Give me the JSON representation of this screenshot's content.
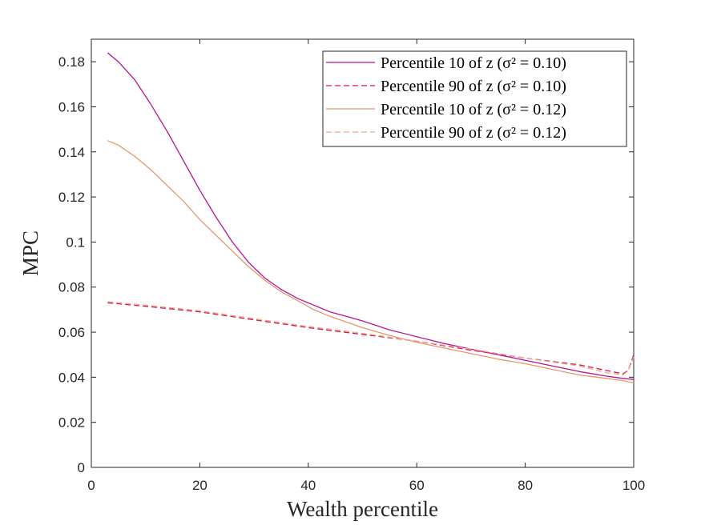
{
  "chart_data": {
    "type": "line",
    "title": "",
    "xlabel": "Wealth percentile",
    "ylabel": "MPC",
    "xlim": [
      0,
      100
    ],
    "ylim": [
      0,
      0.19
    ],
    "xticks": [
      0,
      20,
      40,
      60,
      80,
      100
    ],
    "xtick_labels": [
      "0",
      "20",
      "40",
      "60",
      "80",
      "100"
    ],
    "yticks": [
      0,
      0.02,
      0.04,
      0.06,
      0.08,
      0.1,
      0.12,
      0.14,
      0.16,
      0.18
    ],
    "ytick_labels": [
      "0",
      "0.02",
      "0.04",
      "0.06",
      "0.08",
      "0.1",
      "0.12",
      "0.14",
      "0.16",
      "0.18"
    ],
    "grid": false,
    "legend_position": "top-right",
    "series": [
      {
        "name": "Percentile 10 of z (σ² = 0.10)",
        "color": "#b5158f",
        "dash": "solid",
        "x": [
          3,
          5,
          8,
          11,
          14,
          17,
          20,
          23,
          26,
          29,
          32,
          35,
          38,
          41,
          44,
          47,
          50,
          55,
          60,
          65,
          70,
          75,
          80,
          85,
          90,
          95,
          98,
          100
        ],
        "y": [
          0.184,
          0.18,
          0.172,
          0.161,
          0.149,
          0.136,
          0.123,
          0.111,
          0.1,
          0.091,
          0.084,
          0.079,
          0.075,
          0.072,
          0.069,
          0.067,
          0.065,
          0.061,
          0.058,
          0.055,
          0.0525,
          0.05,
          0.0475,
          0.045,
          0.0425,
          0.0405,
          0.0395,
          0.039
        ]
      },
      {
        "name": "Percentile 90 of z (σ² = 0.10)",
        "color": "#d6174f",
        "dash": "dashed",
        "x": [
          3,
          10,
          20,
          30,
          40,
          50,
          60,
          70,
          80,
          90,
          95,
          98,
          99,
          100
        ],
        "y": [
          0.073,
          0.0715,
          0.069,
          0.0655,
          0.062,
          0.059,
          0.056,
          0.052,
          0.0485,
          0.0455,
          0.043,
          0.0415,
          0.043,
          0.05
        ]
      },
      {
        "name": "Percentile 10 of z (σ² = 0.12)",
        "color": "#e8956b",
        "dash": "solid",
        "x": [
          3,
          5,
          8,
          11,
          14,
          17,
          20,
          23,
          26,
          29,
          32,
          35,
          38,
          41,
          44,
          47,
          50,
          55,
          60,
          65,
          70,
          75,
          80,
          85,
          90,
          95,
          98,
          100
        ],
        "y": [
          0.145,
          0.143,
          0.138,
          0.132,
          0.125,
          0.118,
          0.11,
          0.103,
          0.096,
          0.089,
          0.083,
          0.078,
          0.074,
          0.07,
          0.067,
          0.0645,
          0.062,
          0.0585,
          0.0555,
          0.053,
          0.0505,
          0.048,
          0.046,
          0.0435,
          0.041,
          0.0395,
          0.0385,
          0.0375
        ]
      },
      {
        "name": "Percentile 90 of z (σ² = 0.12)",
        "color": "#eba789",
        "dash": "dashed",
        "x": [
          3,
          10,
          20,
          30,
          40,
          50,
          60,
          70,
          80,
          90,
          95,
          98,
          99,
          100
        ],
        "y": [
          0.0735,
          0.072,
          0.0695,
          0.066,
          0.0625,
          0.0595,
          0.056,
          0.0525,
          0.0485,
          0.045,
          0.042,
          0.041,
          0.043,
          0.049
        ]
      }
    ]
  }
}
